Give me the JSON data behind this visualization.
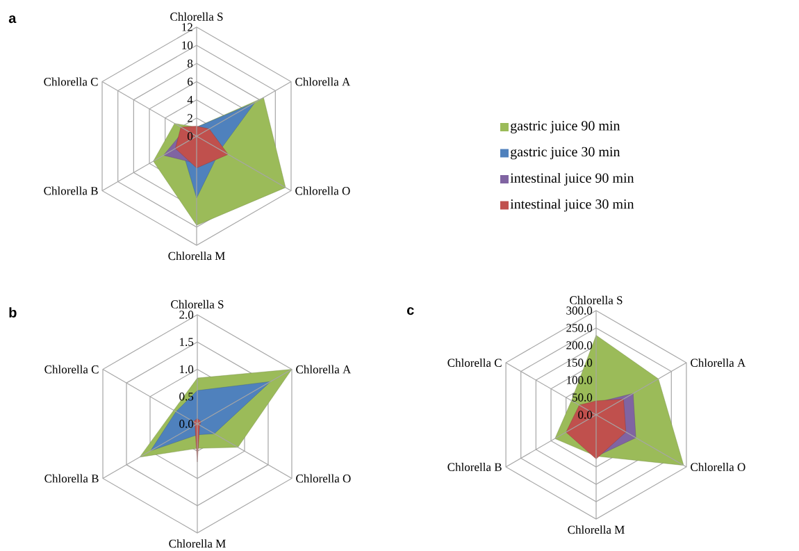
{
  "chart_data": [
    {
      "type": "radar",
      "title": "a",
      "categories": [
        "Chlorella S",
        "Chlorella A",
        "Chlorella O",
        "Chlorella M",
        "Chlorella B",
        "Chlorella C"
      ],
      "ylim": [
        0,
        12
      ],
      "yticks": [
        0,
        2,
        4,
        6,
        8,
        10,
        12
      ],
      "grid": true,
      "legend": "right",
      "marker": "none",
      "series": [
        {
          "name": "gastric juice 90 min",
          "color": "#9bbb59",
          "values": [
            1,
            8.5,
            11.3,
            9.8,
            5.5,
            2.8
          ]
        },
        {
          "name": "gastric juice 30 min",
          "color": "#4f81bd",
          "values": [
            1,
            7.4,
            3,
            6.8,
            2,
            1
          ]
        },
        {
          "name": "intestinal juice 90 min",
          "color": "#8064a2",
          "values": [
            1,
            1.5,
            3.5,
            3,
            4.2,
            1.5
          ]
        },
        {
          "name": "intestinal juice 30 min",
          "color": "#c0504d",
          "values": [
            1.1,
            1.6,
            4,
            3.5,
            2.7,
            2
          ]
        }
      ]
    },
    {
      "type": "radar",
      "title": "b",
      "categories": [
        "Chlorella S",
        "Chlorella A",
        "Chlorella O",
        "Chlorella M",
        "Chlorella B",
        "Chlorella C"
      ],
      "ylim": [
        0,
        2
      ],
      "yticks": [
        {
          "value": 0,
          "label": "0.0"
        },
        {
          "value": 0.5,
          "label": "0.5"
        },
        {
          "value": 1,
          "label": "1.0"
        },
        {
          "value": 1.5,
          "label": "1.5"
        },
        {
          "value": 2,
          "label": "2.0"
        }
      ],
      "grid": true,
      "marker": "none",
      "series": [
        {
          "color": "#9bbb59",
          "values": [
            0.84,
            2,
            0.86,
            0.45,
            1.22,
            0.5
          ]
        },
        {
          "color": "#4f81bd",
          "values": [
            0.61,
            1.55,
            0.36,
            0.2,
            0.99,
            0.45
          ]
        },
        {
          "color": "#c0504d",
          "values": [
            0.1,
            0.08,
            0.05,
            0.7,
            0.05,
            0.08
          ]
        }
      ]
    },
    {
      "type": "radar",
      "title": "c",
      "categories": [
        "Chlorella S",
        "Chlorella A",
        "Chlorella O",
        "Chlorella M",
        "Chlorella B",
        "Chlorella C"
      ],
      "ylim": [
        0,
        300
      ],
      "yticks": [
        {
          "value": 0,
          "label": "0.0"
        },
        {
          "value": 50,
          "label": "50.0"
        },
        {
          "value": 100,
          "label": "100.0"
        },
        {
          "value": 150,
          "label": "150.0"
        },
        {
          "value": 200,
          "label": "200.0"
        },
        {
          "value": 250,
          "label": "250.0"
        },
        {
          "value": 300,
          "label": "300.0"
        }
      ],
      "grid": true,
      "marker": "none",
      "series": [
        {
          "color": "#9bbb59",
          "values": [
            229,
            207,
            291,
            119,
            137,
            82
          ]
        },
        {
          "color": "#8064a2",
          "values": [
            35,
            123,
            132,
            120,
            90,
            50
          ]
        },
        {
          "color": "#c0504d",
          "values": [
            40,
            91,
            99,
            127,
            100,
            56
          ]
        }
      ]
    }
  ]
}
